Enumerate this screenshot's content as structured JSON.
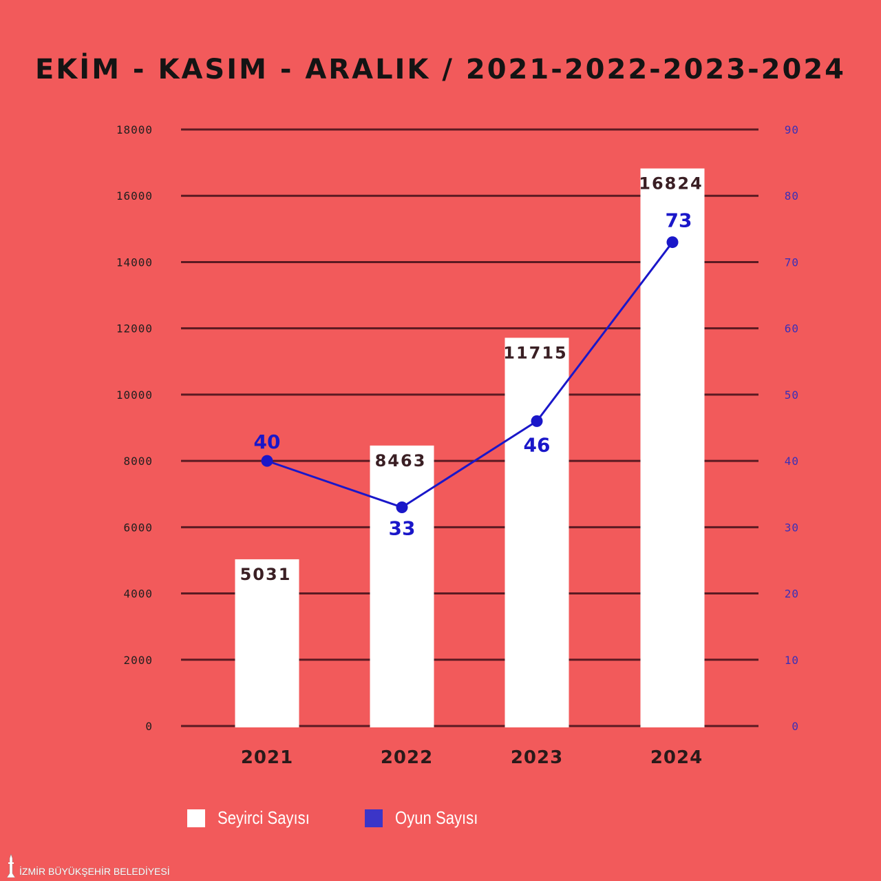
{
  "chart_data": {
    "type": "bar",
    "title": "EKİM - KASIM - ARALIK / 2021-2022-2023-2024",
    "categories": [
      "2021",
      "2022",
      "2023",
      "2024"
    ],
    "series": [
      {
        "name": "Seyirci Sayısı",
        "type": "bar",
        "axis": "left",
        "values": [
          5031,
          8463,
          11715,
          16824
        ],
        "color": "#FFFFFF"
      },
      {
        "name": "Oyun Sayısı",
        "type": "line",
        "axis": "right",
        "values": [
          40,
          33,
          46,
          73
        ],
        "color": "#1A17C9"
      }
    ],
    "y_left": {
      "min": 0,
      "max": 18000,
      "ticks": [
        "0",
        "2000",
        "4000",
        "6000",
        "8000",
        "10000",
        "12000",
        "14000",
        "16000",
        "18000"
      ]
    },
    "y_right": {
      "min": 0,
      "max": 90,
      "ticks": [
        "0",
        "10",
        "20",
        "30",
        "40",
        "50",
        "60",
        "70",
        "80",
        "90"
      ]
    },
    "grid": true,
    "legend_position": "bottom-left"
  },
  "colors": {
    "background": "#F25A5B",
    "gridline": "#5A1A22",
    "legend_line_swatch": "#3B35C8"
  },
  "footer": {
    "logo_text": "İZMİR BÜYÜKŞEHİR BELEDİYESİ"
  }
}
